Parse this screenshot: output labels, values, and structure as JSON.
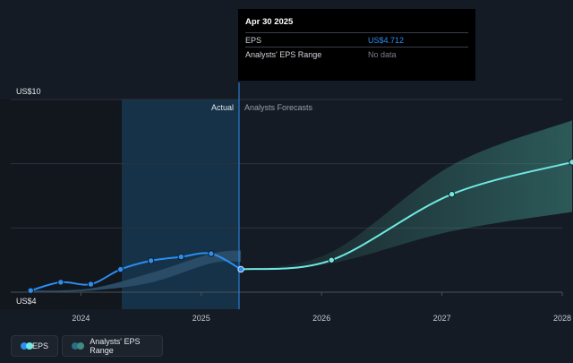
{
  "chart_data": {
    "type": "line",
    "y_labels": {
      "top": "US$10",
      "bottom": "US$4"
    },
    "ylim": [
      4,
      10
    ],
    "xlim": [
      "2023-06",
      "2028-01"
    ],
    "x_ticks": [
      "2024",
      "2025",
      "2026",
      "2027",
      "2028"
    ],
    "section_labels": {
      "actual": "Actual",
      "forecast": "Analysts Forecasts"
    },
    "series": [
      {
        "name": "EPS",
        "color": "#2b8ef0",
        "points": [
          {
            "x": "2023-07-31",
            "y": 4.05
          },
          {
            "x": "2023-10-31",
            "y": 4.31
          },
          {
            "x": "2024-01-31",
            "y": 4.25
          },
          {
            "x": "2024-04-30",
            "y": 4.71
          },
          {
            "x": "2024-07-31",
            "y": 4.98
          },
          {
            "x": "2024-10-31",
            "y": 5.1
          },
          {
            "x": "2025-01-31",
            "y": 5.2
          },
          {
            "x": "2025-04-30",
            "y": 4.712
          }
        ]
      },
      {
        "name": "Forecast",
        "color": "#6fe9e1",
        "points": [
          {
            "x": "2025-04-30",
            "y": 4.712
          },
          {
            "x": "2026-01-31",
            "y": 5.0
          },
          {
            "x": "2027-01-31",
            "y": 7.05
          },
          {
            "x": "2028-01-31",
            "y": 8.05
          }
        ]
      }
    ],
    "range_band": {
      "name": "Analysts' EPS Range",
      "color": "#3f8c83",
      "upper": [
        {
          "x": "2025-04-30",
          "y": 4.712
        },
        {
          "x": "2026-01-31",
          "y": 5.25
        },
        {
          "x": "2027-01-31",
          "y": 7.95
        },
        {
          "x": "2028-01-31",
          "y": 9.35
        }
      ],
      "lower": [
        {
          "x": "2025-04-30",
          "y": 4.712
        },
        {
          "x": "2026-01-31",
          "y": 4.9
        },
        {
          "x": "2027-01-31",
          "y": 5.9
        },
        {
          "x": "2028-01-31",
          "y": 6.5
        }
      ]
    },
    "past_range_band": {
      "upper": [
        {
          "x": "2023-07-31",
          "y": 4.05
        },
        {
          "x": "2024-01-31",
          "y": 4.12
        },
        {
          "x": "2024-07-31",
          "y": 4.6
        },
        {
          "x": "2025-01-31",
          "y": 5.2
        },
        {
          "x": "2025-04-30",
          "y": 5.3
        }
      ],
      "lower": [
        {
          "x": "2023-07-31",
          "y": 4.0
        },
        {
          "x": "2024-01-31",
          "y": 4.05
        },
        {
          "x": "2024-07-31",
          "y": 4.3
        },
        {
          "x": "2025-01-31",
          "y": 4.9
        },
        {
          "x": "2025-04-30",
          "y": 4.95
        }
      ]
    }
  },
  "tooltip": {
    "date": "Apr 30 2025",
    "rows": [
      {
        "label": "EPS",
        "value": "US$4.712"
      },
      {
        "label": "Analysts' EPS Range",
        "value": "No data"
      }
    ]
  },
  "legend": {
    "eps": {
      "label": "EPS",
      "colors": [
        "#2b8ef0",
        "#6fe9e1"
      ]
    },
    "range": {
      "label": "Analysts' EPS Range",
      "colors": [
        "#2a6d86",
        "#3f8c83"
      ]
    }
  }
}
